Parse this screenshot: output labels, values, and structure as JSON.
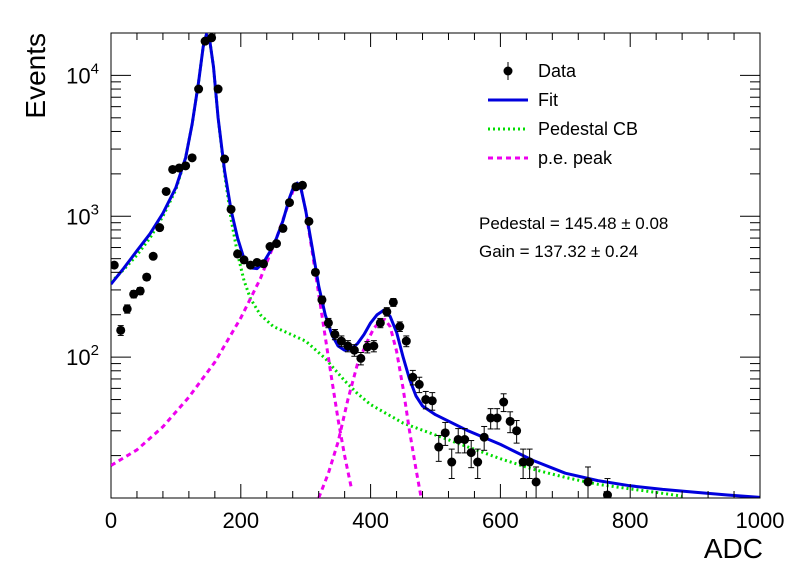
{
  "chart_data": {
    "type": "scatter",
    "title": "",
    "xlabel": "ADC",
    "ylabel": "Events",
    "xlim": [
      0,
      1000
    ],
    "ylim": [
      10,
      20000
    ],
    "yscale": "log",
    "grid": false,
    "legend_position": "top-right",
    "x_ticks": [
      "0",
      "200",
      "400",
      "600",
      "800",
      "1000"
    ],
    "y_ticks": [
      {
        "base": "10",
        "exp": "2",
        "value": 100
      },
      {
        "base": "10",
        "exp": "3",
        "value": 1000
      },
      {
        "base": "10",
        "exp": "4",
        "value": 10000
      }
    ],
    "legend": [
      {
        "label": "Data",
        "style": "marker",
        "color": "#000000"
      },
      {
        "label": "Fit",
        "style": "solid",
        "color": "#0000dd"
      },
      {
        "label": "Pedestal CB",
        "style": "dotted",
        "color": "#00dd00"
      },
      {
        "label": "p.e. peak",
        "style": "dashed",
        "color": "#ee00ee"
      }
    ],
    "annotations": [
      "Pedestal = 145.48 ± 0.08",
      "Gain = 137.32 ± 0.24"
    ],
    "series": [
      {
        "name": "Data",
        "type": "scatter",
        "color": "#000000",
        "points": [
          {
            "x": 5,
            "y": 450
          },
          {
            "x": 15,
            "y": 155
          },
          {
            "x": 25,
            "y": 220
          },
          {
            "x": 35,
            "y": 280
          },
          {
            "x": 45,
            "y": 295
          },
          {
            "x": 55,
            "y": 370
          },
          {
            "x": 65,
            "y": 520
          },
          {
            "x": 75,
            "y": 830
          },
          {
            "x": 85,
            "y": 1500
          },
          {
            "x": 95,
            "y": 2150
          },
          {
            "x": 105,
            "y": 2200
          },
          {
            "x": 115,
            "y": 2280
          },
          {
            "x": 125,
            "y": 2600
          },
          {
            "x": 135,
            "y": 8000
          },
          {
            "x": 145,
            "y": 17500
          },
          {
            "x": 155,
            "y": 18500
          },
          {
            "x": 165,
            "y": 8000
          },
          {
            "x": 175,
            "y": 2550
          },
          {
            "x": 185,
            "y": 1120
          },
          {
            "x": 195,
            "y": 540
          },
          {
            "x": 205,
            "y": 490
          },
          {
            "x": 215,
            "y": 450
          },
          {
            "x": 225,
            "y": 470
          },
          {
            "x": 235,
            "y": 460
          },
          {
            "x": 245,
            "y": 610
          },
          {
            "x": 255,
            "y": 640
          },
          {
            "x": 265,
            "y": 820
          },
          {
            "x": 275,
            "y": 1250
          },
          {
            "x": 285,
            "y": 1620
          },
          {
            "x": 295,
            "y": 1660
          },
          {
            "x": 305,
            "y": 920
          },
          {
            "x": 315,
            "y": 400
          },
          {
            "x": 325,
            "y": 255
          },
          {
            "x": 335,
            "y": 175
          },
          {
            "x": 345,
            "y": 145
          },
          {
            "x": 355,
            "y": 130
          },
          {
            "x": 365,
            "y": 120
          },
          {
            "x": 375,
            "y": 112
          },
          {
            "x": 385,
            "y": 98
          },
          {
            "x": 395,
            "y": 118
          },
          {
            "x": 405,
            "y": 120
          },
          {
            "x": 415,
            "y": 175
          },
          {
            "x": 425,
            "y": 210
          },
          {
            "x": 435,
            "y": 245
          },
          {
            "x": 445,
            "y": 165
          },
          {
            "x": 455,
            "y": 130
          },
          {
            "x": 465,
            "y": 72
          },
          {
            "x": 475,
            "y": 64
          },
          {
            "x": 485,
            "y": 50
          },
          {
            "x": 495,
            "y": 49
          },
          {
            "x": 505,
            "y": 23
          },
          {
            "x": 515,
            "y": 29
          },
          {
            "x": 525,
            "y": 18
          },
          {
            "x": 535,
            "y": 26
          },
          {
            "x": 545,
            "y": 26
          },
          {
            "x": 555,
            "y": 21
          },
          {
            "x": 565,
            "y": 18
          },
          {
            "x": 575,
            "y": 27
          },
          {
            "x": 585,
            "y": 37
          },
          {
            "x": 595,
            "y": 37
          },
          {
            "x": 605,
            "y": 48
          },
          {
            "x": 615,
            "y": 35
          },
          {
            "x": 625,
            "y": 30
          },
          {
            "x": 635,
            "y": 18
          },
          {
            "x": 645,
            "y": 18
          },
          {
            "x": 655,
            "y": 13
          },
          {
            "x": 735,
            "y": 13
          },
          {
            "x": 765,
            "y": 10.5
          }
        ]
      },
      {
        "name": "Fit",
        "type": "line",
        "color": "#0000dd",
        "points": [
          {
            "x": 0,
            "y": 330
          },
          {
            "x": 20,
            "y": 430
          },
          {
            "x": 40,
            "y": 570
          },
          {
            "x": 60,
            "y": 750
          },
          {
            "x": 80,
            "y": 1050
          },
          {
            "x": 100,
            "y": 1600
          },
          {
            "x": 115,
            "y": 2600
          },
          {
            "x": 125,
            "y": 4500
          },
          {
            "x": 135,
            "y": 9000
          },
          {
            "x": 142,
            "y": 16000
          },
          {
            "x": 147,
            "y": 19500
          },
          {
            "x": 152,
            "y": 18000
          },
          {
            "x": 158,
            "y": 11500
          },
          {
            "x": 165,
            "y": 5000
          },
          {
            "x": 175,
            "y": 2100
          },
          {
            "x": 185,
            "y": 1100
          },
          {
            "x": 195,
            "y": 700
          },
          {
            "x": 205,
            "y": 500
          },
          {
            "x": 215,
            "y": 430
          },
          {
            "x": 225,
            "y": 425
          },
          {
            "x": 235,
            "y": 470
          },
          {
            "x": 245,
            "y": 560
          },
          {
            "x": 255,
            "y": 700
          },
          {
            "x": 265,
            "y": 930
          },
          {
            "x": 275,
            "y": 1350
          },
          {
            "x": 282,
            "y": 1650
          },
          {
            "x": 287,
            "y": 1720
          },
          {
            "x": 293,
            "y": 1550
          },
          {
            "x": 300,
            "y": 1100
          },
          {
            "x": 310,
            "y": 600
          },
          {
            "x": 320,
            "y": 320
          },
          {
            "x": 330,
            "y": 200
          },
          {
            "x": 340,
            "y": 145
          },
          {
            "x": 350,
            "y": 120
          },
          {
            "x": 360,
            "y": 112
          },
          {
            "x": 370,
            "y": 114
          },
          {
            "x": 380,
            "y": 125
          },
          {
            "x": 390,
            "y": 145
          },
          {
            "x": 400,
            "y": 175
          },
          {
            "x": 410,
            "y": 200
          },
          {
            "x": 420,
            "y": 215
          },
          {
            "x": 430,
            "y": 195
          },
          {
            "x": 440,
            "y": 150
          },
          {
            "x": 450,
            "y": 100
          },
          {
            "x": 460,
            "y": 70
          },
          {
            "x": 470,
            "y": 53
          },
          {
            "x": 480,
            "y": 45
          },
          {
            "x": 500,
            "y": 39
          },
          {
            "x": 550,
            "y": 30
          },
          {
            "x": 600,
            "y": 24
          },
          {
            "x": 650,
            "y": 18.5
          },
          {
            "x": 700,
            "y": 15
          },
          {
            "x": 750,
            "y": 13.3
          },
          {
            "x": 800,
            "y": 12.2
          },
          {
            "x": 850,
            "y": 11.5
          },
          {
            "x": 900,
            "y": 11
          },
          {
            "x": 950,
            "y": 10.5
          },
          {
            "x": 1000,
            "y": 10.1
          }
        ]
      },
      {
        "name": "Pedestal CB",
        "type": "line",
        "color": "#00dd00",
        "points": [
          {
            "x": 0,
            "y": 340
          },
          {
            "x": 20,
            "y": 420
          },
          {
            "x": 40,
            "y": 530
          },
          {
            "x": 60,
            "y": 700
          },
          {
            "x": 80,
            "y": 1000
          },
          {
            "x": 100,
            "y": 1550
          },
          {
            "x": 115,
            "y": 2600
          },
          {
            "x": 125,
            "y": 4500
          },
          {
            "x": 135,
            "y": 9000
          },
          {
            "x": 142,
            "y": 16000
          },
          {
            "x": 147,
            "y": 19500
          },
          {
            "x": 152,
            "y": 18000
          },
          {
            "x": 158,
            "y": 11500
          },
          {
            "x": 165,
            "y": 5000
          },
          {
            "x": 175,
            "y": 2000
          },
          {
            "x": 185,
            "y": 950
          },
          {
            "x": 195,
            "y": 540
          },
          {
            "x": 205,
            "y": 350
          },
          {
            "x": 215,
            "y": 260
          },
          {
            "x": 230,
            "y": 200
          },
          {
            "x": 250,
            "y": 165
          },
          {
            "x": 270,
            "y": 150
          },
          {
            "x": 300,
            "y": 130
          },
          {
            "x": 330,
            "y": 98
          },
          {
            "x": 360,
            "y": 68
          },
          {
            "x": 380,
            "y": 55
          },
          {
            "x": 400,
            "y": 46
          },
          {
            "x": 450,
            "y": 34
          },
          {
            "x": 500,
            "y": 28
          },
          {
            "x": 550,
            "y": 23
          },
          {
            "x": 600,
            "y": 19
          },
          {
            "x": 650,
            "y": 16
          },
          {
            "x": 700,
            "y": 14
          },
          {
            "x": 750,
            "y": 12.5
          },
          {
            "x": 800,
            "y": 11.6
          },
          {
            "x": 850,
            "y": 10.8
          },
          {
            "x": 880,
            "y": 10.3
          }
        ]
      },
      {
        "name": "p.e. peak",
        "type": "line",
        "color": "#ee00ee",
        "points": [
          {
            "x": 0,
            "y": 17
          },
          {
            "x": 40,
            "y": 22
          },
          {
            "x": 80,
            "y": 32
          },
          {
            "x": 120,
            "y": 52
          },
          {
            "x": 160,
            "y": 92
          },
          {
            "x": 200,
            "y": 190
          },
          {
            "x": 230,
            "y": 360
          },
          {
            "x": 255,
            "y": 700
          },
          {
            "x": 270,
            "y": 1100
          },
          {
            "x": 280,
            "y": 1500
          },
          {
            "x": 287,
            "y": 1700
          },
          {
            "x": 293,
            "y": 1550
          },
          {
            "x": 300,
            "y": 1100
          },
          {
            "x": 310,
            "y": 560
          },
          {
            "x": 320,
            "y": 280
          },
          {
            "x": 330,
            "y": 140
          },
          {
            "x": 340,
            "y": 70
          },
          {
            "x": 350,
            "y": 36
          },
          {
            "x": 360,
            "y": 20
          },
          {
            "x": 370,
            "y": 12
          }
        ]
      },
      {
        "name": "",
        "type": "line",
        "color": "#ee00ee",
        "points": [
          {
            "x": 320,
            "y": 10
          },
          {
            "x": 335,
            "y": 15
          },
          {
            "x": 350,
            "y": 25
          },
          {
            "x": 365,
            "y": 50
          },
          {
            "x": 380,
            "y": 90
          },
          {
            "x": 395,
            "y": 130
          },
          {
            "x": 405,
            "y": 160
          },
          {
            "x": 415,
            "y": 180
          },
          {
            "x": 422,
            "y": 185
          },
          {
            "x": 430,
            "y": 165
          },
          {
            "x": 440,
            "y": 110
          },
          {
            "x": 450,
            "y": 60
          },
          {
            "x": 460,
            "y": 30
          },
          {
            "x": 470,
            "y": 16
          },
          {
            "x": 478,
            "y": 10
          }
        ]
      }
    ]
  }
}
